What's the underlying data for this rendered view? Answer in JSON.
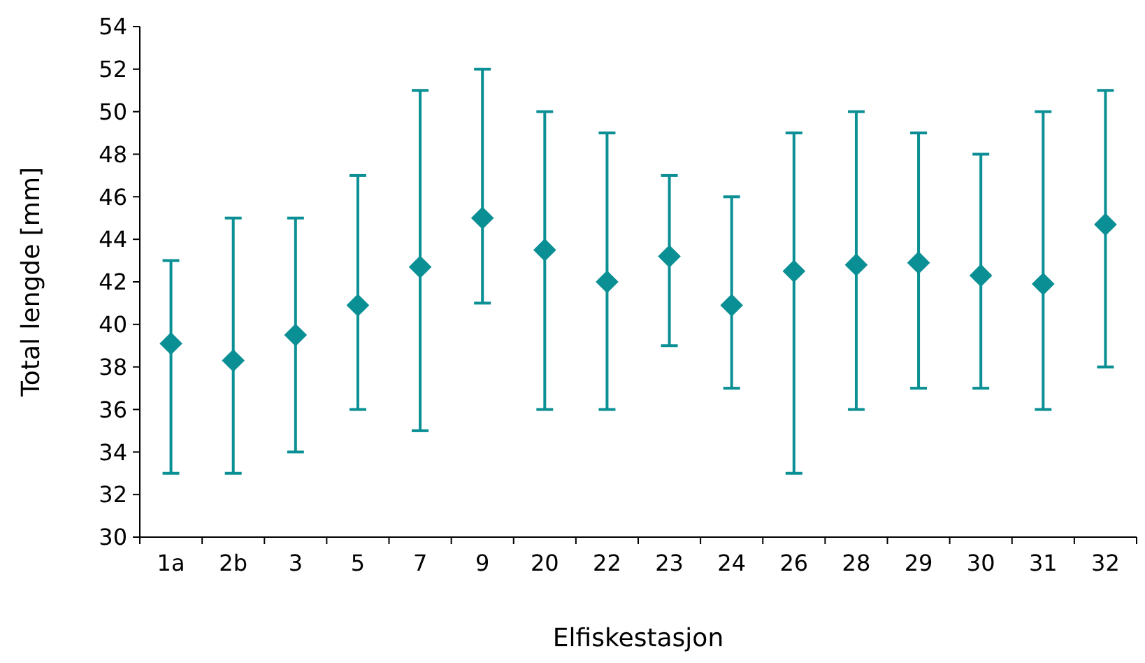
{
  "chart_data": {
    "type": "scatter",
    "xlabel": "Elfiskestasjon",
    "ylabel": "Total lengde [mm]",
    "categories": [
      "1a",
      "2b",
      "3",
      "5",
      "7",
      "9",
      "20",
      "22",
      "23",
      "24",
      "26",
      "28",
      "29",
      "30",
      "31",
      "32"
    ],
    "series": [
      {
        "color": "#0a8f94",
        "values": [
          39.1,
          38.3,
          39.5,
          40.9,
          42.7,
          45.0,
          43.5,
          42.0,
          43.2,
          40.9,
          42.5,
          42.8,
          42.9,
          42.3,
          41.9,
          44.7
        ],
        "errors": [
          [
            33,
            43
          ],
          [
            33,
            45
          ],
          [
            34,
            45
          ],
          [
            36,
            47
          ],
          [
            35,
            51
          ],
          [
            41,
            52
          ],
          [
            36,
            50
          ],
          [
            36,
            49
          ],
          [
            39,
            47
          ],
          [
            37,
            46
          ],
          [
            33,
            49
          ],
          [
            36,
            50
          ],
          [
            37,
            49
          ],
          [
            37,
            48
          ],
          [
            36,
            50
          ],
          [
            38,
            51
          ]
        ]
      }
    ],
    "ylim": [
      30,
      54
    ],
    "yticks": [
      30,
      32,
      34,
      36,
      38,
      40,
      42,
      44,
      46,
      48,
      50,
      52,
      54
    ],
    "marker": "diamond",
    "grid": false
  }
}
